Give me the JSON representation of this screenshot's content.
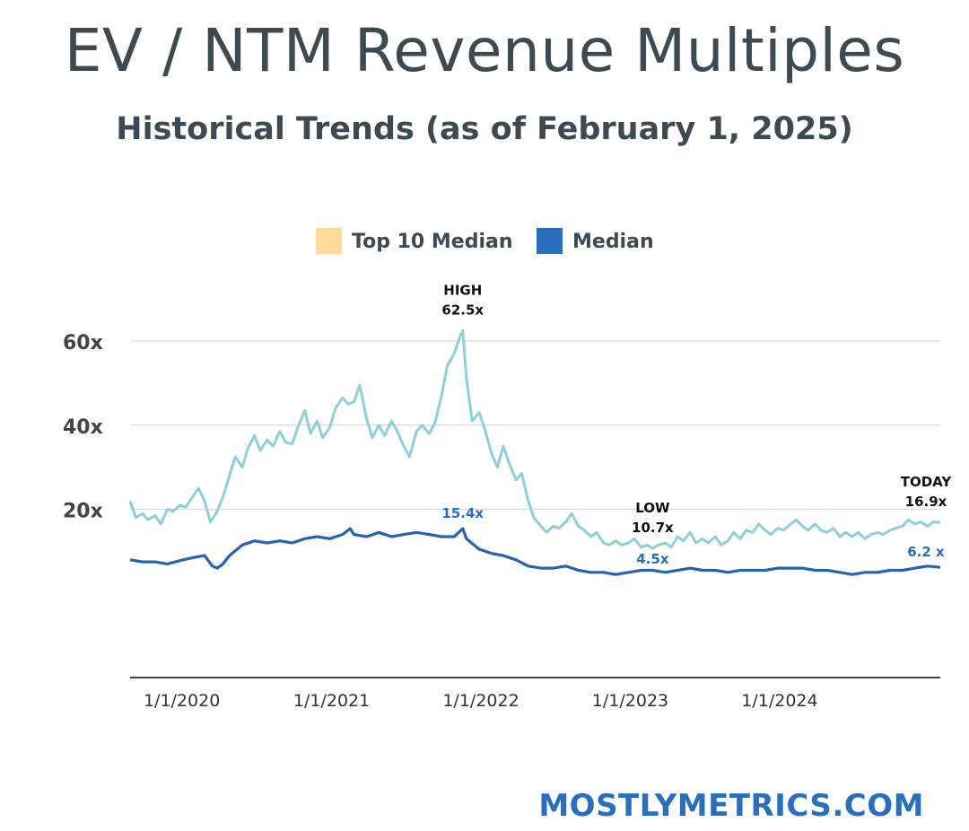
{
  "header": {
    "title": "EV / NTM Revenue Multiples",
    "subtitle": "Historical Trends (as of  February 1, 2025)"
  },
  "footer": {
    "brand": "MOSTLYMETRICS.COM"
  },
  "colors": {
    "top10_line": "#8fcfd8",
    "median_line": "#2a63ad",
    "legend_top10_swatch": "#fdd99b",
    "legend_median_swatch": "#2a6fbd",
    "grid": "#d9d9d9",
    "axis": "#444444",
    "text_dark": "#3e4a52",
    "annotation_blue": "#2a6fbd"
  },
  "chart_data": {
    "type": "line",
    "title": "",
    "xlabel": "",
    "ylabel": "",
    "ylim": [
      -20,
      65
    ],
    "grid": true,
    "legend_position": "top-center",
    "y_ticks": [
      {
        "value": 60,
        "label": "60x"
      },
      {
        "value": 40,
        "label": "40x"
      },
      {
        "value": 20,
        "label": "20x"
      }
    ],
    "x_ticks": [
      {
        "value": "2020-01-01",
        "label": "1/1/2020"
      },
      {
        "value": "2021-01-01",
        "label": "1/1/2021"
      },
      {
        "value": "2022-01-01",
        "label": "1/1/2022"
      },
      {
        "value": "2023-01-01",
        "label": "1/1/2023"
      },
      {
        "value": "2024-01-01",
        "label": "1/1/2024"
      }
    ],
    "series": [
      {
        "name": "Top 10 Median",
        "legend_swatch": "#fdd99b",
        "color": "#8fcfd8",
        "points": [
          [
            "2019-09-01",
            22.0
          ],
          [
            "2019-09-15",
            18.0
          ],
          [
            "2019-10-01",
            19.0
          ],
          [
            "2019-10-15",
            17.5
          ],
          [
            "2019-11-01",
            18.5
          ],
          [
            "2019-11-15",
            16.5
          ],
          [
            "2019-12-01",
            20.0
          ],
          [
            "2019-12-15",
            19.5
          ],
          [
            "2020-01-01",
            21.0
          ],
          [
            "2020-01-15",
            20.5
          ],
          [
            "2020-02-01",
            23.0
          ],
          [
            "2020-02-15",
            25.0
          ],
          [
            "2020-03-01",
            22.0
          ],
          [
            "2020-03-15",
            17.0
          ],
          [
            "2020-04-01",
            19.5
          ],
          [
            "2020-04-15",
            23.0
          ],
          [
            "2020-05-01",
            28.0
          ],
          [
            "2020-05-15",
            32.5
          ],
          [
            "2020-06-01",
            30.0
          ],
          [
            "2020-06-15",
            34.5
          ],
          [
            "2020-07-01",
            37.5
          ],
          [
            "2020-07-15",
            34.0
          ],
          [
            "2020-08-01",
            36.5
          ],
          [
            "2020-08-15",
            35.0
          ],
          [
            "2020-09-01",
            38.5
          ],
          [
            "2020-09-15",
            36.0
          ],
          [
            "2020-10-01",
            35.5
          ],
          [
            "2020-10-15",
            39.5
          ],
          [
            "2020-11-01",
            43.5
          ],
          [
            "2020-11-15",
            38.0
          ],
          [
            "2020-12-01",
            41.0
          ],
          [
            "2020-12-15",
            37.0
          ],
          [
            "2021-01-01",
            39.5
          ],
          [
            "2021-01-15",
            44.0
          ],
          [
            "2021-02-01",
            46.5
          ],
          [
            "2021-02-15",
            45.0
          ],
          [
            "2021-03-01",
            45.5
          ],
          [
            "2021-03-15",
            49.5
          ],
          [
            "2021-04-01",
            41.5
          ],
          [
            "2021-04-15",
            37.0
          ],
          [
            "2021-05-01",
            40.0
          ],
          [
            "2021-05-15",
            37.5
          ],
          [
            "2021-06-01",
            41.0
          ],
          [
            "2021-06-15",
            38.5
          ],
          [
            "2021-07-01",
            35.0
          ],
          [
            "2021-07-15",
            32.5
          ],
          [
            "2021-08-01",
            38.5
          ],
          [
            "2021-08-15",
            40.0
          ],
          [
            "2021-09-01",
            38.0
          ],
          [
            "2021-09-15",
            40.5
          ],
          [
            "2021-10-01",
            47.0
          ],
          [
            "2021-10-15",
            54.0
          ],
          [
            "2021-11-01",
            57.0
          ],
          [
            "2021-11-15",
            61.0
          ],
          [
            "2021-11-22",
            62.5
          ],
          [
            "2021-12-01",
            51.0
          ],
          [
            "2021-12-15",
            41.0
          ],
          [
            "2022-01-01",
            43.0
          ],
          [
            "2022-01-15",
            39.0
          ],
          [
            "2022-02-01",
            33.0
          ],
          [
            "2022-02-15",
            30.0
          ],
          [
            "2022-03-01",
            35.0
          ],
          [
            "2022-03-15",
            31.0
          ],
          [
            "2022-04-01",
            27.0
          ],
          [
            "2022-04-15",
            28.5
          ],
          [
            "2022-05-01",
            22.0
          ],
          [
            "2022-05-15",
            18.0
          ],
          [
            "2022-06-01",
            16.0
          ],
          [
            "2022-06-15",
            14.5
          ],
          [
            "2022-07-01",
            16.0
          ],
          [
            "2022-07-15",
            15.5
          ],
          [
            "2022-08-01",
            17.0
          ],
          [
            "2022-08-15",
            19.0
          ],
          [
            "2022-09-01",
            16.0
          ],
          [
            "2022-09-15",
            15.0
          ],
          [
            "2022-10-01",
            13.5
          ],
          [
            "2022-10-15",
            14.5
          ],
          [
            "2022-11-01",
            12.0
          ],
          [
            "2022-11-15",
            11.5
          ],
          [
            "2022-12-01",
            12.5
          ],
          [
            "2022-12-15",
            11.5
          ],
          [
            "2023-01-01",
            12.0
          ],
          [
            "2023-01-15",
            13.0
          ],
          [
            "2023-02-01",
            11.0
          ],
          [
            "2023-02-15",
            11.5
          ],
          [
            "2023-03-01",
            10.7
          ],
          [
            "2023-03-15",
            11.5
          ],
          [
            "2023-04-01",
            12.0
          ],
          [
            "2023-04-15",
            11.0
          ],
          [
            "2023-05-01",
            13.5
          ],
          [
            "2023-05-15",
            12.5
          ],
          [
            "2023-06-01",
            14.5
          ],
          [
            "2023-06-15",
            12.0
          ],
          [
            "2023-07-01",
            13.0
          ],
          [
            "2023-07-15",
            12.0
          ],
          [
            "2023-08-01",
            13.5
          ],
          [
            "2023-08-15",
            11.5
          ],
          [
            "2023-09-01",
            12.5
          ],
          [
            "2023-09-15",
            14.5
          ],
          [
            "2023-10-01",
            13.0
          ],
          [
            "2023-10-15",
            15.0
          ],
          [
            "2023-11-01",
            14.5
          ],
          [
            "2023-11-15",
            16.5
          ],
          [
            "2023-12-01",
            15.0
          ],
          [
            "2023-12-15",
            14.0
          ],
          [
            "2024-01-01",
            15.5
          ],
          [
            "2024-01-15",
            15.0
          ],
          [
            "2024-02-01",
            16.5
          ],
          [
            "2024-02-15",
            17.5
          ],
          [
            "2024-03-01",
            16.0
          ],
          [
            "2024-03-15",
            15.0
          ],
          [
            "2024-04-01",
            16.5
          ],
          [
            "2024-04-15",
            15.0
          ],
          [
            "2024-05-01",
            14.5
          ],
          [
            "2024-05-15",
            15.5
          ],
          [
            "2024-06-01",
            13.5
          ],
          [
            "2024-06-15",
            14.5
          ],
          [
            "2024-07-01",
            13.5
          ],
          [
            "2024-07-15",
            14.5
          ],
          [
            "2024-08-01",
            13.0
          ],
          [
            "2024-08-15",
            14.0
          ],
          [
            "2024-09-01",
            14.5
          ],
          [
            "2024-09-15",
            14.0
          ],
          [
            "2024-10-01",
            15.0
          ],
          [
            "2024-10-15",
            15.5
          ],
          [
            "2024-11-01",
            16.0
          ],
          [
            "2024-11-15",
            17.5
          ],
          [
            "2024-12-01",
            16.5
          ],
          [
            "2024-12-15",
            17.0
          ],
          [
            "2025-01-01",
            16.0
          ],
          [
            "2025-01-15",
            17.0
          ],
          [
            "2025-02-01",
            16.9
          ]
        ]
      },
      {
        "name": "Median",
        "legend_swatch": "#2a6fbd",
        "color": "#2a63ad",
        "points": [
          [
            "2019-09-01",
            8.0
          ],
          [
            "2019-10-01",
            7.5
          ],
          [
            "2019-11-01",
            7.5
          ],
          [
            "2019-12-01",
            7.0
          ],
          [
            "2020-01-01",
            7.8
          ],
          [
            "2020-02-01",
            8.5
          ],
          [
            "2020-03-01",
            9.0
          ],
          [
            "2020-03-20",
            6.5
          ],
          [
            "2020-04-01",
            6.0
          ],
          [
            "2020-04-15",
            7.0
          ],
          [
            "2020-05-01",
            9.0
          ],
          [
            "2020-06-01",
            11.5
          ],
          [
            "2020-07-01",
            12.5
          ],
          [
            "2020-08-01",
            12.0
          ],
          [
            "2020-09-01",
            12.5
          ],
          [
            "2020-10-01",
            12.0
          ],
          [
            "2020-11-01",
            13.0
          ],
          [
            "2020-12-01",
            13.5
          ],
          [
            "2021-01-01",
            13.0
          ],
          [
            "2021-02-01",
            14.0
          ],
          [
            "2021-02-20",
            15.4
          ],
          [
            "2021-03-01",
            14.0
          ],
          [
            "2021-04-01",
            13.5
          ],
          [
            "2021-05-01",
            14.5
          ],
          [
            "2021-06-01",
            13.5
          ],
          [
            "2021-07-01",
            14.0
          ],
          [
            "2021-08-01",
            14.5
          ],
          [
            "2021-09-01",
            14.0
          ],
          [
            "2021-10-01",
            13.5
          ],
          [
            "2021-11-01",
            13.5
          ],
          [
            "2021-11-22",
            15.4
          ],
          [
            "2021-12-01",
            13.0
          ],
          [
            "2022-01-01",
            10.5
          ],
          [
            "2022-02-01",
            9.5
          ],
          [
            "2022-03-01",
            9.0
          ],
          [
            "2022-04-01",
            8.0
          ],
          [
            "2022-05-01",
            6.5
          ],
          [
            "2022-06-01",
            6.0
          ],
          [
            "2022-07-01",
            6.0
          ],
          [
            "2022-08-01",
            6.5
          ],
          [
            "2022-09-01",
            5.5
          ],
          [
            "2022-10-01",
            5.0
          ],
          [
            "2022-11-01",
            5.0
          ],
          [
            "2022-12-01",
            4.5
          ],
          [
            "2023-01-01",
            5.0
          ],
          [
            "2023-02-01",
            5.5
          ],
          [
            "2023-03-01",
            5.5
          ],
          [
            "2023-04-01",
            5.0
          ],
          [
            "2023-05-01",
            5.5
          ],
          [
            "2023-06-01",
            6.0
          ],
          [
            "2023-07-01",
            5.5
          ],
          [
            "2023-08-01",
            5.5
          ],
          [
            "2023-09-01",
            5.0
          ],
          [
            "2023-10-01",
            5.5
          ],
          [
            "2023-11-01",
            5.5
          ],
          [
            "2023-12-01",
            5.5
          ],
          [
            "2024-01-01",
            6.0
          ],
          [
            "2024-02-01",
            6.0
          ],
          [
            "2024-03-01",
            6.0
          ],
          [
            "2024-04-01",
            5.5
          ],
          [
            "2024-05-01",
            5.5
          ],
          [
            "2024-06-01",
            5.0
          ],
          [
            "2024-07-01",
            4.5
          ],
          [
            "2024-08-01",
            5.0
          ],
          [
            "2024-09-01",
            5.0
          ],
          [
            "2024-10-01",
            5.5
          ],
          [
            "2024-11-01",
            5.5
          ],
          [
            "2024-12-01",
            6.0
          ],
          [
            "2025-01-01",
            6.5
          ],
          [
            "2025-02-01",
            6.2
          ]
        ]
      }
    ],
    "annotations": [
      {
        "date": "2021-11-22",
        "value": 62.5,
        "lines": [
          "HIGH",
          "62.5x"
        ],
        "color": "#111111",
        "placement": "above"
      },
      {
        "date": "2023-03-01",
        "value": 10.7,
        "lines": [
          "LOW",
          "10.7x"
        ],
        "color": "#111111",
        "placement": "above"
      },
      {
        "date": "2025-02-01",
        "value": 16.9,
        "lines": [
          "TODAY",
          "16.9x"
        ],
        "color": "#111111",
        "placement": "above-left"
      },
      {
        "date": "2021-11-22",
        "value": 15.4,
        "lines": [
          "15.4x"
        ],
        "color": "#2a6fbd",
        "placement": "above"
      },
      {
        "date": "2023-03-01",
        "value": 4.5,
        "lines": [
          "4.5x"
        ],
        "color": "#2a6fbd",
        "placement": "above"
      },
      {
        "date": "2025-02-01",
        "value": 6.2,
        "lines": [
          "6.2 x"
        ],
        "color": "#2a6fbd",
        "placement": "above-left"
      }
    ]
  }
}
